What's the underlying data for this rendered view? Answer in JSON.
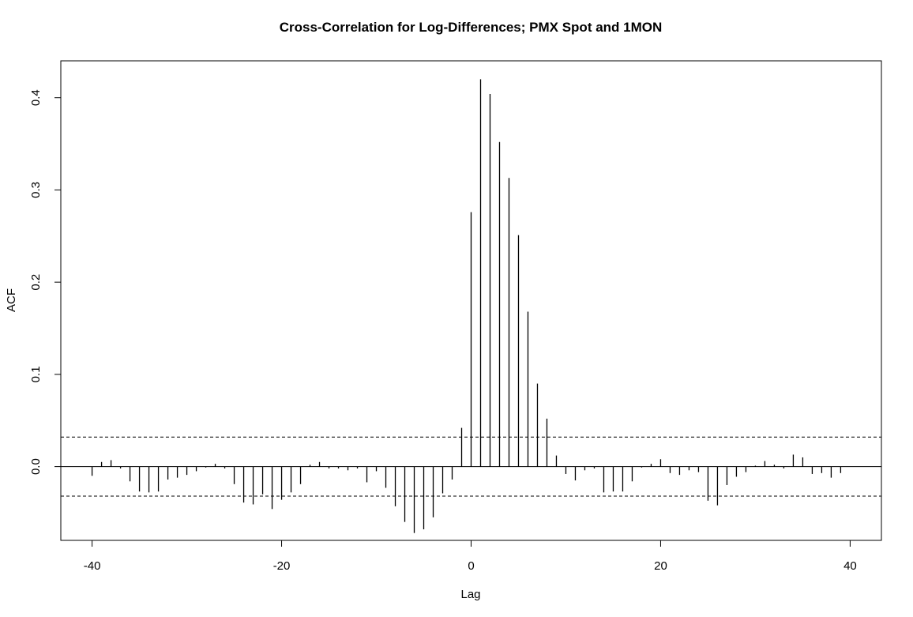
{
  "chart_data": {
    "type": "bar",
    "title": "Cross-Correlation for Log-Differences;  PMX Spot and 1MON",
    "xlabel": "Lag",
    "ylabel": "ACF",
    "xlim": [
      -43.3,
      43.3
    ],
    "ylim": [
      -0.08,
      0.44
    ],
    "x_ticks": [
      -40,
      -20,
      0,
      20,
      40
    ],
    "y_ticks": [
      0.0,
      0.1,
      0.2,
      0.3,
      0.4
    ],
    "x_tick_labels": [
      "-40",
      "-20",
      "0",
      "20",
      "40"
    ],
    "y_tick_labels": [
      "0.0",
      "0.1",
      "0.2",
      "0.3",
      "0.4"
    ],
    "confidence_bound": 0.032,
    "zero_line": true,
    "grid": false,
    "legend": "none",
    "series": [
      {
        "lags": [
          -40,
          -39,
          -38,
          -37,
          -36,
          -35,
          -34,
          -33,
          -32,
          -31,
          -30,
          -29,
          -28,
          -27,
          -26,
          -25,
          -24,
          -23,
          -22,
          -21,
          -20,
          -19,
          -18,
          -17,
          -16,
          -15,
          -14,
          -13,
          -12,
          -11,
          -10,
          -9,
          -8,
          -7,
          -6,
          -5,
          -4,
          -3,
          -2,
          -1,
          0,
          1,
          2,
          3,
          4,
          5,
          6,
          7,
          8,
          9,
          10,
          11,
          12,
          13,
          14,
          15,
          16,
          17,
          18,
          19,
          20,
          21,
          22,
          23,
          24,
          25,
          26,
          27,
          28,
          29,
          30,
          31,
          32,
          33,
          34,
          35,
          36,
          37,
          38,
          39,
          40
        ],
        "values": [
          -0.01,
          0.005,
          0.007,
          -0.002,
          -0.016,
          -0.027,
          -0.028,
          -0.027,
          -0.014,
          -0.012,
          -0.009,
          -0.005,
          -0.001,
          0.003,
          -0.002,
          -0.019,
          -0.039,
          -0.041,
          -0.03,
          -0.046,
          -0.036,
          -0.028,
          -0.019,
          0.002,
          0.005,
          -0.002,
          -0.002,
          -0.004,
          -0.002,
          -0.017,
          -0.005,
          -0.023,
          -0.043,
          -0.06,
          -0.072,
          -0.068,
          -0.055,
          -0.029,
          -0.014,
          0.042,
          0.276,
          0.42,
          0.404,
          0.352,
          0.313,
          0.251,
          0.168,
          0.09,
          0.052,
          0.012,
          -0.008,
          -0.015,
          -0.004,
          -0.002,
          -0.028,
          -0.027,
          -0.027,
          -0.016,
          -0.001,
          0.003,
          0.008,
          -0.007,
          -0.009,
          -0.004,
          -0.006,
          -0.037,
          -0.042,
          -0.02,
          -0.011,
          -0.006,
          0.001,
          0.006,
          0.002,
          -0.002,
          0.013,
          0.01,
          -0.008,
          -0.007,
          -0.012,
          -0.007,
          0.0
        ]
      }
    ]
  }
}
